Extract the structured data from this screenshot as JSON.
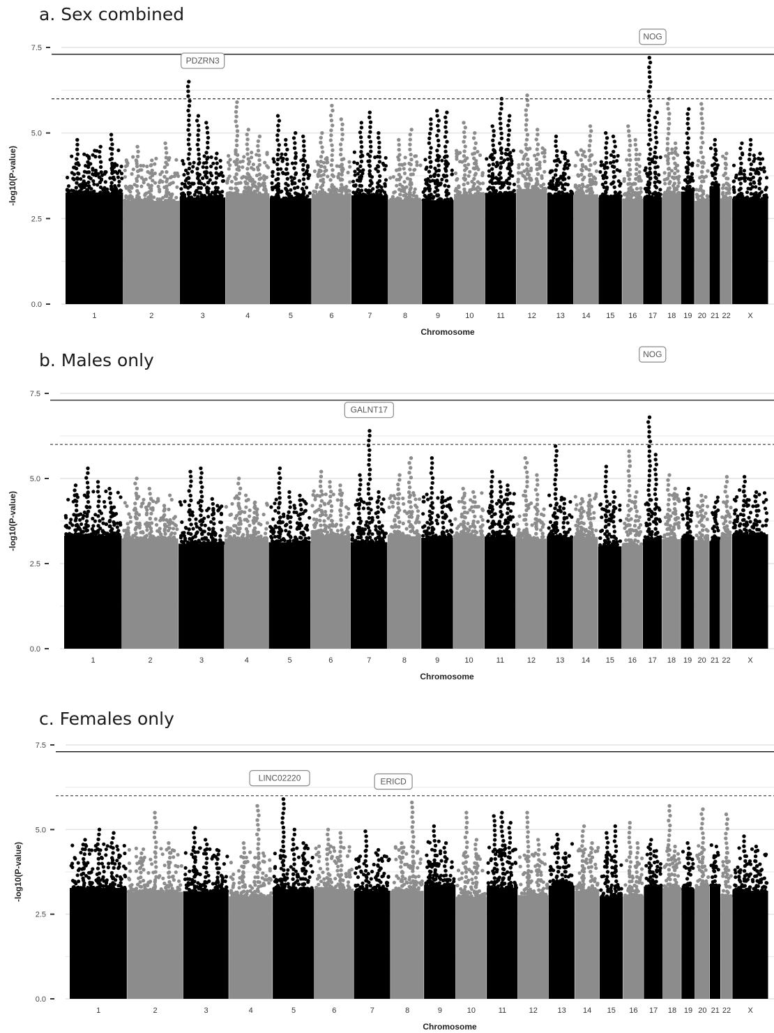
{
  "colors": {
    "dark": "#000000",
    "light": "#8c8c8c",
    "grid": "#e3e3e3",
    "label_border": "#8a8a8a",
    "label_text": "#555555"
  },
  "chart_data": [
    {
      "type": "scatter",
      "subtype": "manhattan",
      "title": "a. Sex combined",
      "xlabel": "Chromosome",
      "ylabel": "-log10(P-value)",
      "ylim": [
        0,
        7.5
      ],
      "yticks": [
        "0.0",
        "2.5",
        "5.0",
        "7.5"
      ],
      "grid": true,
      "thresholds": {
        "genome_wide": 7.3,
        "suggestive": 6.0
      },
      "chromosomes": [
        {
          "label": "1",
          "peaks": [
            4.8,
            4.3,
            4.6,
            4.95
          ],
          "color": "dark"
        },
        {
          "label": "2",
          "peaks": [
            4.6,
            4.2,
            4.7
          ],
          "color": "light"
        },
        {
          "label": "3",
          "peaks": [
            6.5,
            5.5,
            5.3,
            4.4
          ],
          "color": "dark"
        },
        {
          "label": "4",
          "peaks": [
            5.9,
            5.1,
            4.9
          ],
          "color": "light"
        },
        {
          "label": "5",
          "peaks": [
            5.5,
            4.8,
            5.0,
            4.9
          ],
          "color": "dark"
        },
        {
          "label": "6",
          "peaks": [
            5.0,
            5.8,
            5.4
          ],
          "color": "light"
        },
        {
          "label": "7",
          "peaks": [
            5.3,
            5.6,
            5.0
          ],
          "color": "dark"
        },
        {
          "label": "8",
          "peaks": [
            4.8,
            5.1
          ],
          "color": "light"
        },
        {
          "label": "9",
          "peaks": [
            5.4,
            5.65,
            5.6
          ],
          "color": "dark"
        },
        {
          "label": "10",
          "peaks": [
            5.3,
            5.0
          ],
          "color": "light"
        },
        {
          "label": "11",
          "peaks": [
            5.2,
            6.0,
            5.5
          ],
          "color": "dark"
        },
        {
          "label": "12",
          "peaks": [
            6.1,
            5.1
          ],
          "color": "light"
        },
        {
          "label": "13",
          "peaks": [
            4.9,
            4.4
          ],
          "color": "dark"
        },
        {
          "label": "14",
          "peaks": [
            4.5,
            5.2
          ],
          "color": "light"
        },
        {
          "label": "15",
          "peaks": [
            5.0,
            4.9
          ],
          "color": "dark"
        },
        {
          "label": "16",
          "peaks": [
            5.2,
            4.8
          ],
          "color": "light"
        },
        {
          "label": "17",
          "peaks": [
            7.2,
            5.6
          ],
          "color": "dark"
        },
        {
          "label": "18",
          "peaks": [
            6.0,
            4.7
          ],
          "color": "light"
        },
        {
          "label": "19",
          "peaks": [
            5.7
          ],
          "color": "dark"
        },
        {
          "label": "20",
          "peaks": [
            5.85
          ],
          "color": "light"
        },
        {
          "label": "21",
          "peaks": [
            4.8
          ],
          "color": "dark"
        },
        {
          "label": "22",
          "peaks": [
            4.4
          ],
          "color": "light"
        },
        {
          "label": "X",
          "peaks": [
            4.7,
            4.8,
            4.4
          ],
          "color": "dark"
        }
      ],
      "annotations": [
        {
          "text": "PDZRN3",
          "chromosome": "3",
          "value": 6.5
        },
        {
          "text": "NOG",
          "chromosome": "17",
          "value": 7.2
        }
      ]
    },
    {
      "type": "scatter",
      "subtype": "manhattan",
      "title": "b. Males only",
      "xlabel": "Chromosome",
      "ylabel": "-log10(P-value)",
      "ylim": [
        0,
        7.5
      ],
      "yticks": [
        "0.0",
        "2.5",
        "5.0",
        "7.5"
      ],
      "grid": true,
      "thresholds": {
        "genome_wide": 7.3,
        "suggestive": 6.0
      },
      "chromosomes": [
        {
          "label": "1",
          "peaks": [
            4.8,
            5.3,
            4.9,
            4.7
          ],
          "color": "dark"
        },
        {
          "label": "2",
          "peaks": [
            5.0,
            4.7,
            4.2
          ],
          "color": "light"
        },
        {
          "label": "3",
          "peaks": [
            5.2,
            5.3,
            4.4
          ],
          "color": "dark"
        },
        {
          "label": "4",
          "peaks": [
            5.0,
            4.3
          ],
          "color": "light"
        },
        {
          "label": "5",
          "peaks": [
            5.3,
            4.6,
            4.5
          ],
          "color": "dark"
        },
        {
          "label": "6",
          "peaks": [
            5.2,
            4.9,
            4.8
          ],
          "color": "light"
        },
        {
          "label": "7",
          "peaks": [
            5.1,
            6.4,
            4.6
          ],
          "color": "dark"
        },
        {
          "label": "8",
          "peaks": [
            5.1,
            5.6
          ],
          "color": "light"
        },
        {
          "label": "9",
          "peaks": [
            5.6,
            4.6
          ],
          "color": "dark"
        },
        {
          "label": "10",
          "peaks": [
            4.7,
            4.6
          ],
          "color": "light"
        },
        {
          "label": "11",
          "peaks": [
            5.2,
            4.9,
            4.8
          ],
          "color": "dark"
        },
        {
          "label": "12",
          "peaks": [
            5.6,
            5.1
          ],
          "color": "light"
        },
        {
          "label": "13",
          "peaks": [
            5.95,
            4.4
          ],
          "color": "dark"
        },
        {
          "label": "14",
          "peaks": [
            4.4,
            4.5
          ],
          "color": "light"
        },
        {
          "label": "15",
          "peaks": [
            5.35,
            4.6
          ],
          "color": "dark"
        },
        {
          "label": "16",
          "peaks": [
            5.8,
            4.6
          ],
          "color": "light"
        },
        {
          "label": "17",
          "peaks": [
            6.8,
            5.7
          ],
          "color": "dark"
        },
        {
          "label": "18",
          "peaks": [
            5.1,
            4.7
          ],
          "color": "light"
        },
        {
          "label": "19",
          "peaks": [
            4.7
          ],
          "color": "dark"
        },
        {
          "label": "20",
          "peaks": [
            4.5
          ],
          "color": "light"
        },
        {
          "label": "21",
          "peaks": [
            4.3
          ],
          "color": "dark"
        },
        {
          "label": "22",
          "peaks": [
            5.05
          ],
          "color": "light"
        },
        {
          "label": "X",
          "peaks": [
            5.05,
            4.6
          ],
          "color": "dark"
        }
      ],
      "annotations": [
        {
          "text": "GALNT17",
          "chromosome": "7",
          "value": 6.4
        },
        {
          "text": "NOG",
          "chromosome": "17",
          "value": 6.8
        }
      ]
    },
    {
      "type": "scatter",
      "subtype": "manhattan",
      "title": "c. Females only",
      "xlabel": "Chromosome",
      "ylabel": "-log10(P-value)",
      "ylim": [
        0,
        7.5
      ],
      "yticks": [
        "0.0",
        "2.5",
        "5.0",
        "7.5"
      ],
      "grid": true,
      "thresholds": {
        "genome_wide": 7.3,
        "suggestive": 6.0
      },
      "chromosomes": [
        {
          "label": "1",
          "peaks": [
            4.7,
            5.0,
            4.9
          ],
          "color": "dark"
        },
        {
          "label": "2",
          "peaks": [
            4.3,
            5.5,
            4.6
          ],
          "color": "light"
        },
        {
          "label": "3",
          "peaks": [
            5.05,
            4.7,
            4.4
          ],
          "color": "dark"
        },
        {
          "label": "4",
          "peaks": [
            4.6,
            5.7
          ],
          "color": "light"
        },
        {
          "label": "5",
          "peaks": [
            5.9,
            5.0,
            4.6
          ],
          "color": "dark"
        },
        {
          "label": "6",
          "peaks": [
            5.0,
            4.9
          ],
          "color": "light"
        },
        {
          "label": "7",
          "peaks": [
            4.95,
            4.4
          ],
          "color": "dark"
        },
        {
          "label": "8",
          "peaks": [
            4.6,
            5.8
          ],
          "color": "light"
        },
        {
          "label": "9",
          "peaks": [
            5.1,
            4.6
          ],
          "color": "dark"
        },
        {
          "label": "10",
          "peaks": [
            5.5,
            4.7
          ],
          "color": "light"
        },
        {
          "label": "11",
          "peaks": [
            5.4,
            5.5,
            5.2
          ],
          "color": "dark"
        },
        {
          "label": "12",
          "peaks": [
            5.5,
            4.7
          ],
          "color": "light"
        },
        {
          "label": "13",
          "peaks": [
            4.85,
            4.3
          ],
          "color": "dark"
        },
        {
          "label": "14",
          "peaks": [
            5.1,
            4.6
          ],
          "color": "light"
        },
        {
          "label": "15",
          "peaks": [
            4.9,
            5.1
          ],
          "color": "dark"
        },
        {
          "label": "16",
          "peaks": [
            5.2,
            4.6
          ],
          "color": "light"
        },
        {
          "label": "17",
          "peaks": [
            4.7,
            4.2
          ],
          "color": "dark"
        },
        {
          "label": "18",
          "peaks": [
            5.7,
            4.5
          ],
          "color": "light"
        },
        {
          "label": "19",
          "peaks": [
            4.6
          ],
          "color": "dark"
        },
        {
          "label": "20",
          "peaks": [
            5.6
          ],
          "color": "light"
        },
        {
          "label": "21",
          "peaks": [
            4.2
          ],
          "color": "dark"
        },
        {
          "label": "22",
          "peaks": [
            5.45
          ],
          "color": "light"
        },
        {
          "label": "X",
          "peaks": [
            4.8,
            4.5
          ],
          "color": "dark"
        }
      ],
      "annotations": [
        {
          "text": "LINC02220",
          "chromosome": "5",
          "value": 5.9
        },
        {
          "text": "ERICD",
          "chromosome": "8",
          "value": 5.8
        }
      ]
    }
  ]
}
